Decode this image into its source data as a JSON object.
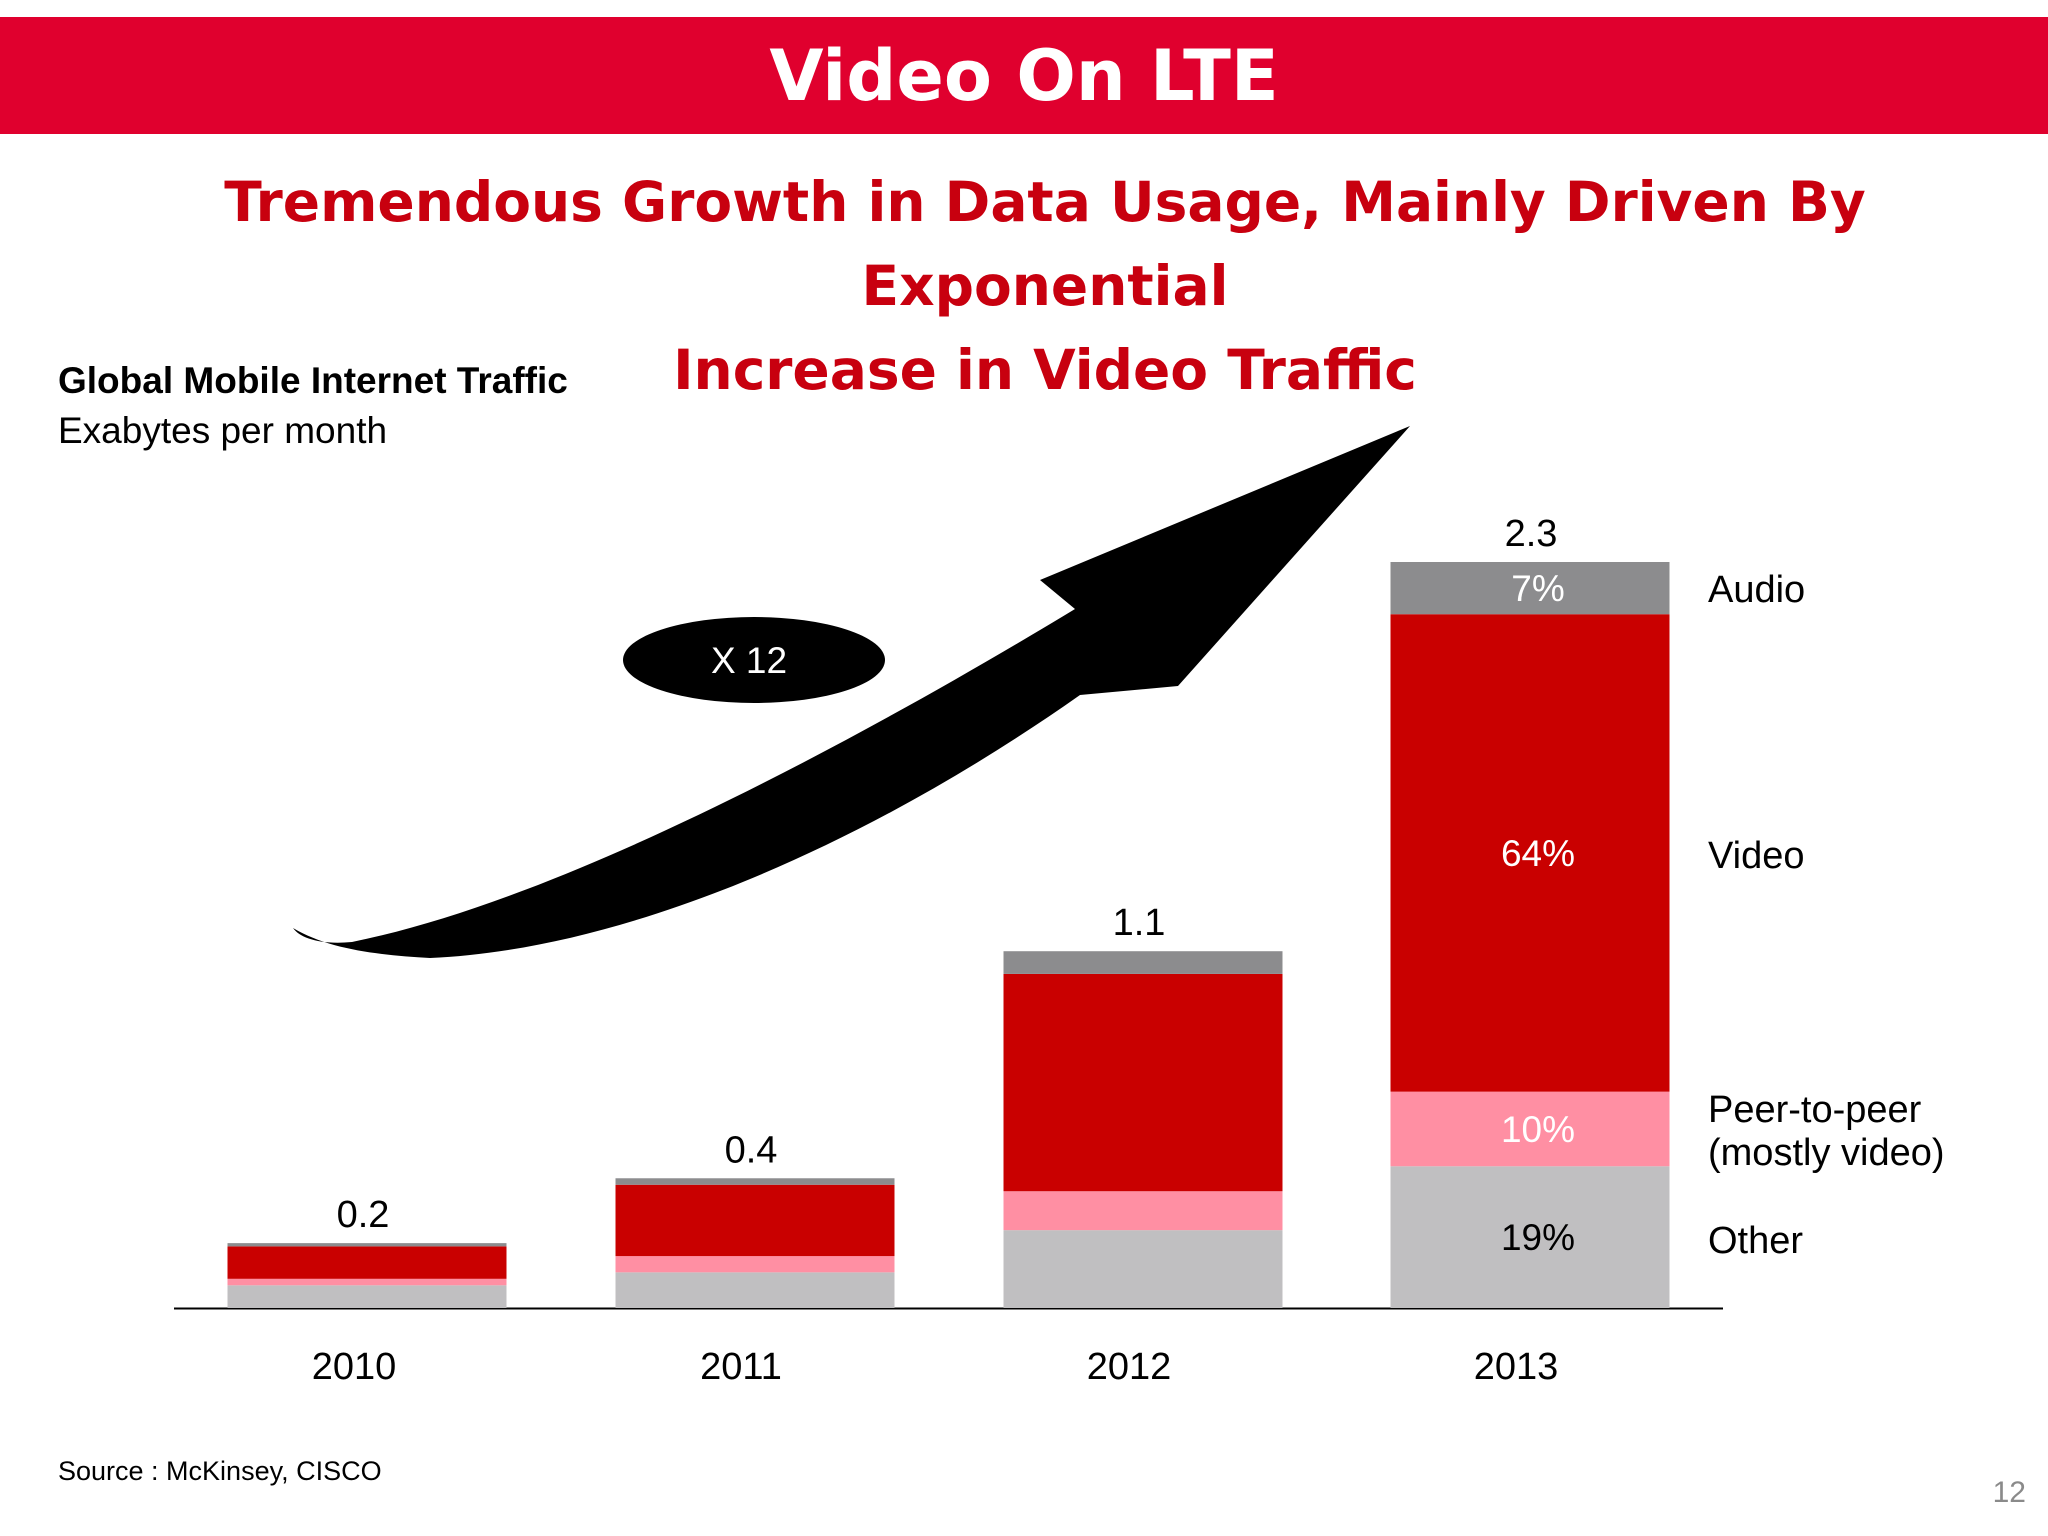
{
  "slide": {
    "title": "Video On LTE",
    "subtitle_line1": "Tremendous Growth in Data Usage, Mainly Driven By Exponential",
    "subtitle_line2": "Increase in Video Traffic",
    "source": "Source : McKinsey, CISCO",
    "page_number": "12"
  },
  "colors": {
    "banner": "#e0002e",
    "subtitle": "#c8000f",
    "audio": "#8c8c8e",
    "video": "#c90000",
    "peer_to_peer": "#ff8fa3",
    "other": "#c0bfc1"
  },
  "chart_data": {
    "type": "bar",
    "stacked": true,
    "title": "Global Mobile Internet Traffic",
    "ylabel": "Exabytes per month",
    "categories": [
      "2010",
      "2011",
      "2012",
      "2013"
    ],
    "totals": [
      0.2,
      0.4,
      1.1,
      2.3
    ],
    "total_labels": [
      "0.2",
      "0.4",
      "1.1",
      "2.3"
    ],
    "ylim": [
      0,
      2.3
    ],
    "series": [
      {
        "name": "Other",
        "values": [
          0.07,
          0.11,
          0.24,
          0.437
        ],
        "color_key": "other",
        "labels": [
          "",
          "",
          "",
          "19%"
        ]
      },
      {
        "name": "Peer-to-peer\n(mostly video)",
        "legend_line1": "Peer-to-peer",
        "legend_line2": "(mostly video)",
        "values": [
          0.02,
          0.05,
          0.12,
          0.23
        ],
        "color_key": "peer_to_peer",
        "labels": [
          "",
          "",
          "",
          "10%"
        ]
      },
      {
        "name": "Video",
        "values": [
          0.1,
          0.22,
          0.67,
          1.472
        ],
        "color_key": "video",
        "labels": [
          "",
          "",
          "",
          "64%"
        ]
      },
      {
        "name": "Audio",
        "values": [
          0.01,
          0.02,
          0.07,
          0.161
        ],
        "color_key": "audio",
        "labels": [
          "",
          "",
          "",
          "7%"
        ]
      }
    ],
    "annotation": "X 12",
    "grid": false
  }
}
